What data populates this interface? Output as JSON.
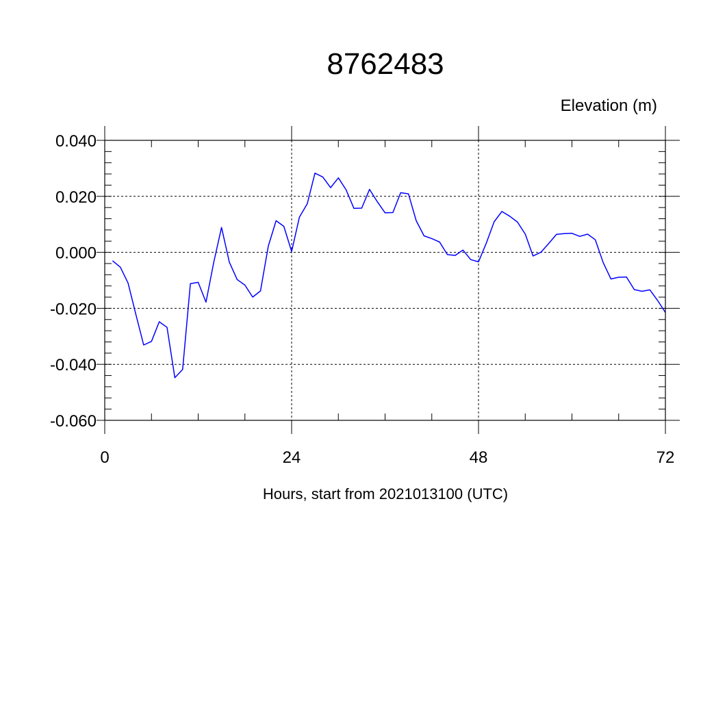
{
  "chart_data": {
    "type": "line",
    "title": "8762483",
    "ylabel": "Elevation (m)",
    "xlabel": "Hours, start from 2021013100 (UTC)",
    "xlim": [
      0,
      72
    ],
    "ylim": [
      -0.06,
      0.04
    ],
    "xticks": [
      0,
      24,
      48,
      72
    ],
    "xtick_labels": [
      "0",
      "24",
      "48",
      "72"
    ],
    "yticks": [
      -0.06,
      -0.04,
      -0.02,
      0.0,
      0.02,
      0.04
    ],
    "ytick_labels": [
      "-0.060",
      "-0.040",
      "-0.020",
      "0.000",
      "0.020",
      "0.040"
    ],
    "grid": true,
    "line_color": "#0000ff",
    "series": [
      {
        "x": [
          1,
          2,
          3,
          4,
          5,
          6,
          7,
          8,
          9,
          10,
          11,
          12,
          13,
          14,
          15,
          16,
          17,
          18,
          19,
          20,
          21,
          22,
          23,
          24,
          25,
          26,
          27,
          28,
          29,
          30,
          31,
          32,
          33,
          34,
          35,
          36,
          37,
          38,
          39,
          40,
          41,
          42,
          43,
          44,
          45,
          46,
          47,
          48,
          49,
          50,
          51,
          52,
          53,
          54,
          55,
          56,
          57,
          58,
          59,
          60,
          61,
          62,
          63,
          64,
          65,
          66,
          67,
          68,
          69,
          70,
          71,
          72
        ],
        "y": [
          -0.003,
          -0.0053,
          -0.011,
          -0.0222,
          -0.0331,
          -0.0318,
          -0.0248,
          -0.0268,
          -0.0448,
          -0.0418,
          -0.0112,
          -0.0107,
          -0.0178,
          -0.0035,
          0.0089,
          -0.0035,
          -0.0097,
          -0.0117,
          -0.016,
          -0.0138,
          0.0022,
          0.0113,
          0.0093,
          0.0003,
          0.0126,
          0.0173,
          0.0283,
          0.0269,
          0.0231,
          0.0266,
          0.0223,
          0.0157,
          0.0158,
          0.0225,
          0.0181,
          0.0141,
          0.0142,
          0.0213,
          0.0209,
          0.0113,
          0.0059,
          0.0049,
          0.0037,
          -0.0008,
          -0.0011,
          0.0008,
          -0.0026,
          -0.0034,
          0.0033,
          0.0109,
          0.0146,
          0.0129,
          0.0108,
          0.0065,
          -0.0013,
          0.0,
          0.0031,
          0.0064,
          0.0067,
          0.0068,
          0.0057,
          0.0065,
          0.0045,
          -0.0036,
          -0.0095,
          -0.0089,
          -0.0088,
          -0.0133,
          -0.0139,
          -0.0134,
          -0.0172,
          -0.0215
        ]
      }
    ]
  }
}
